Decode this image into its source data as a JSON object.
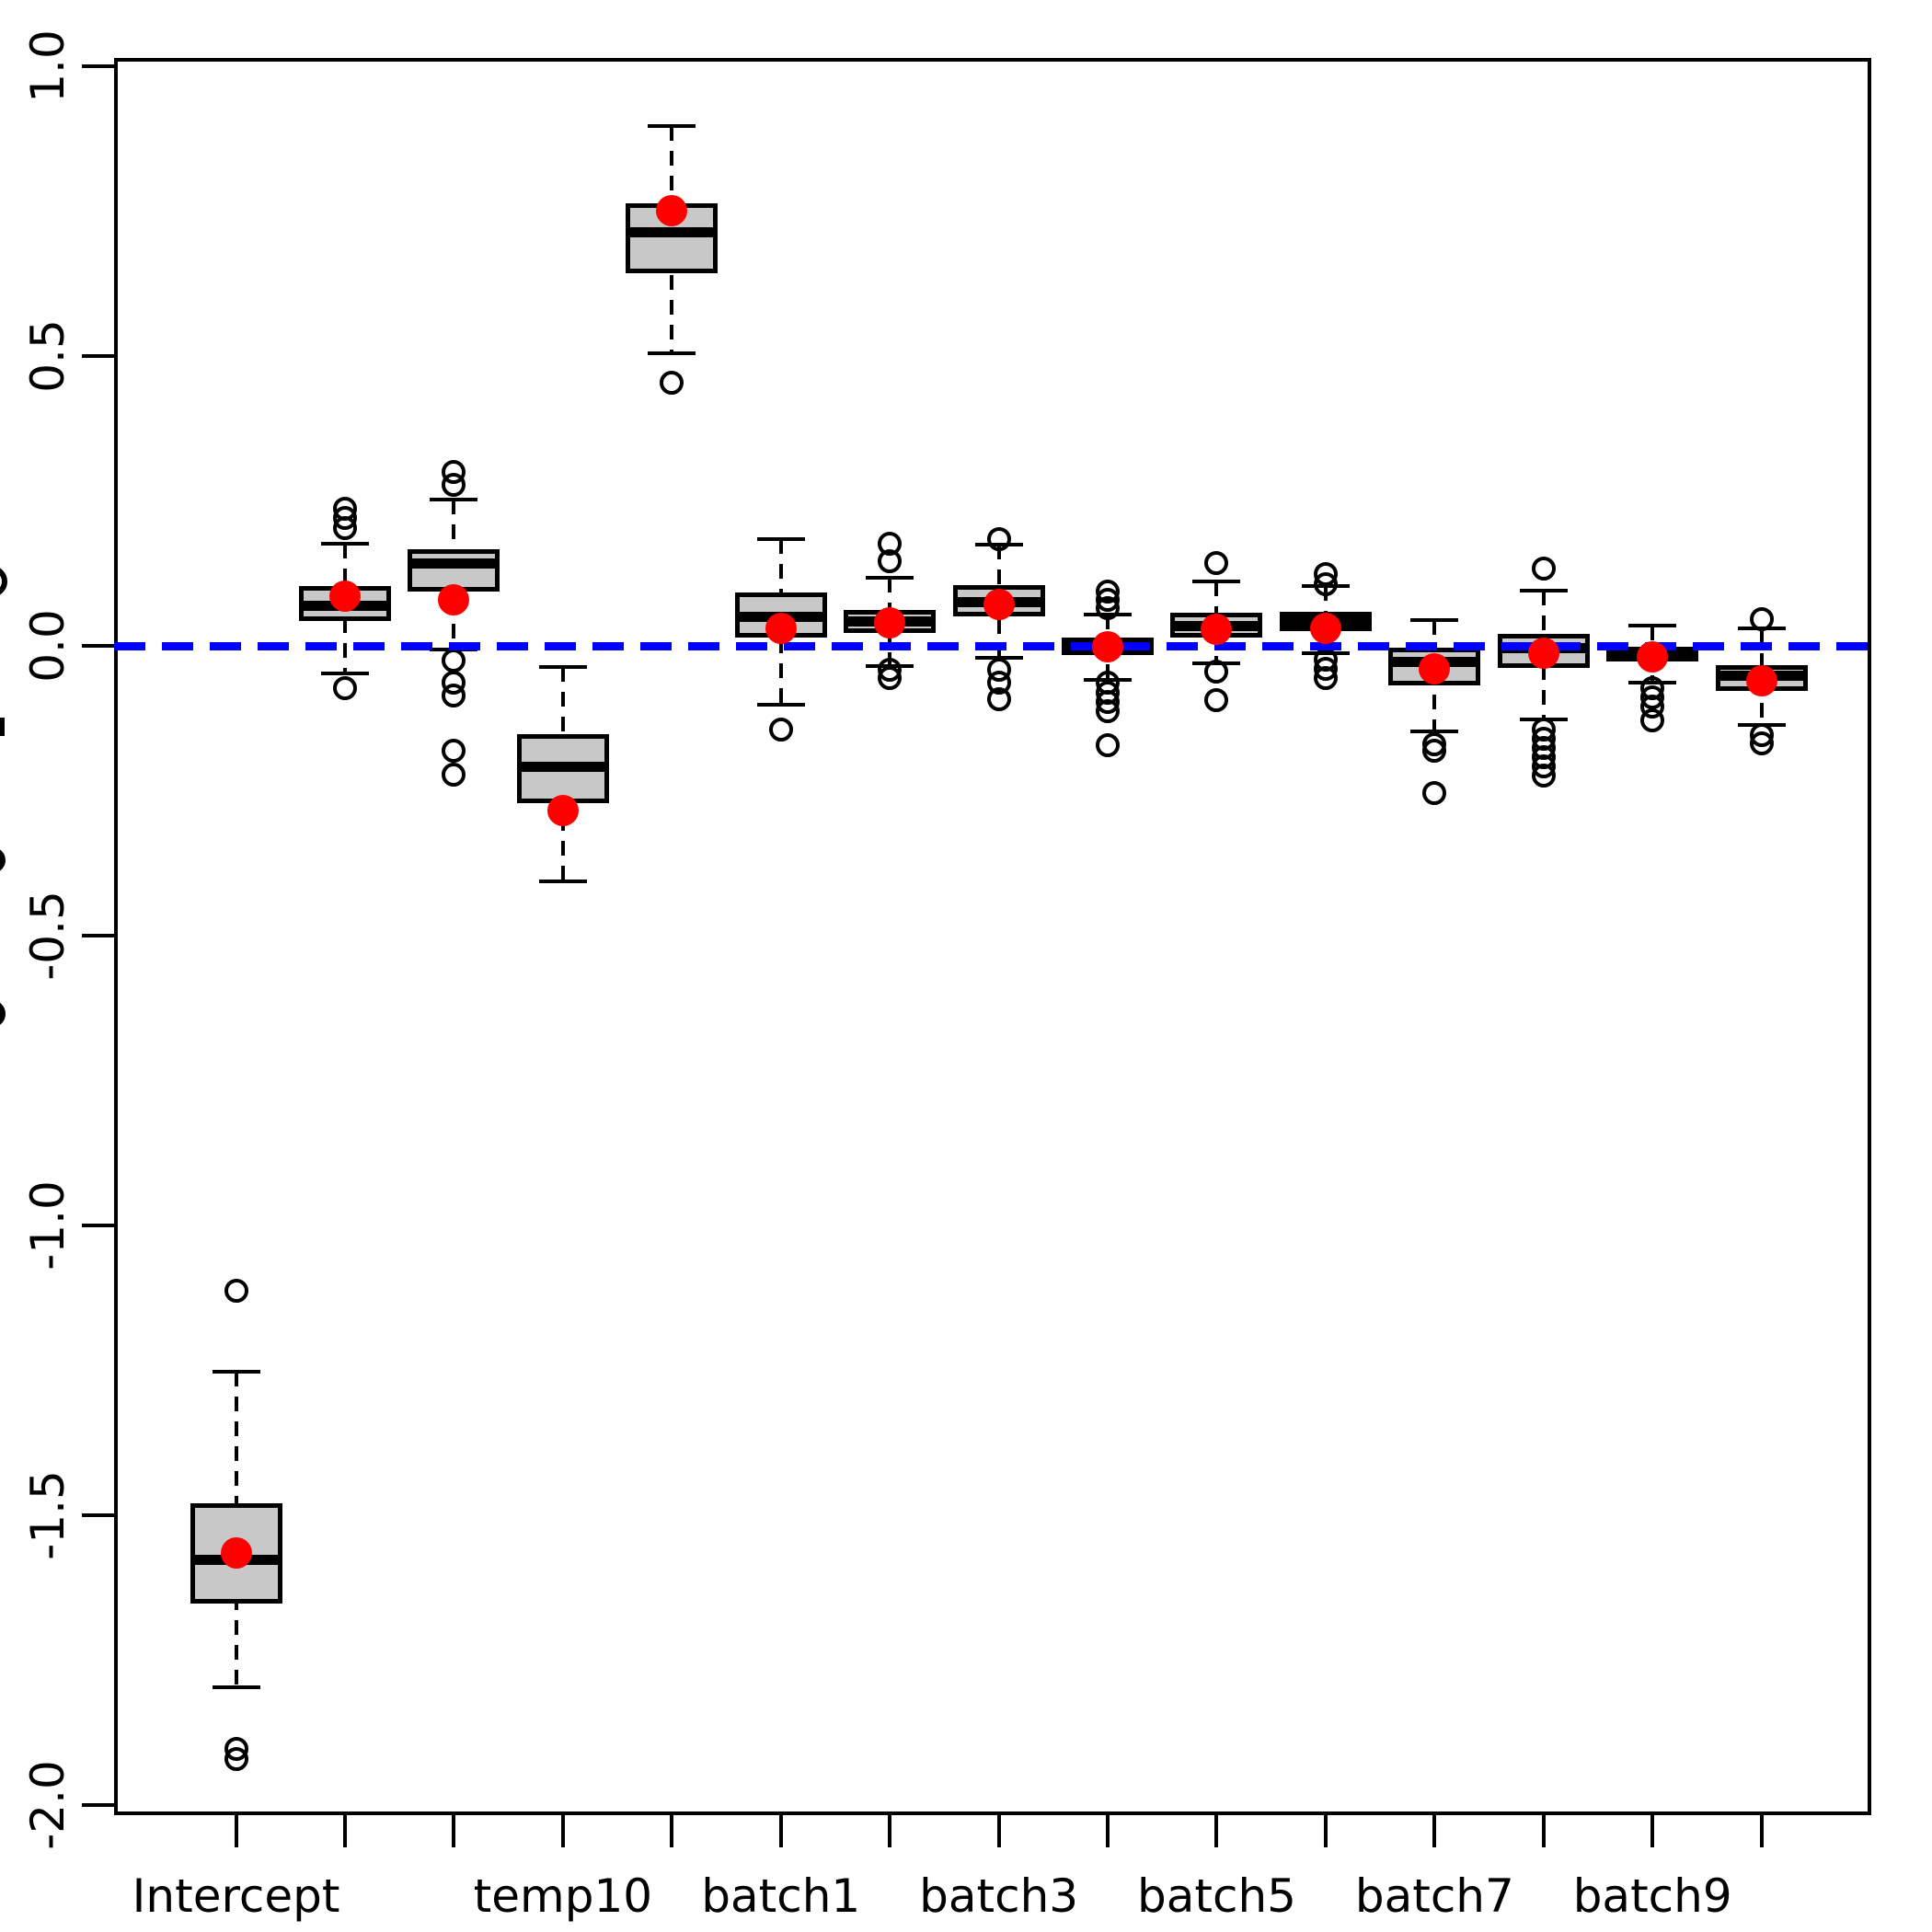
{
  "figure": {
    "background": "#ffffff",
    "y_axis_title_clipped": true,
    "y_axis_title_fragments_y": [
      632,
      790,
      935,
      1102
    ]
  },
  "chart_data": {
    "type": "boxplot",
    "title": "",
    "xlabel": "",
    "ylabel": "",
    "grid": false,
    "legend": false,
    "ylim": [
      -2.018,
      1.015
    ],
    "y_ticks": {
      "values": [
        1.0,
        0.5,
        0.0,
        -0.5,
        -1.0,
        -1.5,
        -2.0
      ],
      "labels": [
        "1.0",
        "0.5",
        "0.0",
        "-0.5",
        "-1.0",
        "-1.5",
        "-2.0"
      ]
    },
    "x_tick_labels": [
      "Intercept",
      "",
      "",
      "temp10",
      "",
      "batch1",
      "",
      "batch3",
      "",
      "batch5",
      "",
      "batch7",
      "",
      "batch9",
      ""
    ],
    "reference_line": {
      "y": 0,
      "color": "#0000ff",
      "style": "dashed"
    },
    "colors": {
      "box_fill": "#c8c8c8",
      "box_border": "#000000",
      "mean_point": "#ff0000",
      "reference": "#0000ff"
    },
    "boxes": [
      {
        "label": "Intercept",
        "whislo": -1.797,
        "q1": -1.653,
        "med": -1.577,
        "q3": -1.48,
        "whishi": -1.253,
        "mean_point": -1.565,
        "out_high": [
          -1.113
        ],
        "out_low": [
          -1.904,
          -1.921
        ]
      },
      {
        "label": "",
        "whislo": -0.047,
        "q1": 0.043,
        "med": 0.07,
        "q3": 0.103,
        "whishi": 0.177,
        "mean_point": 0.086,
        "out_high": [
          0.237,
          0.221,
          0.203
        ],
        "out_low": [
          -0.073
        ]
      },
      {
        "label": "",
        "whislo": -0.006,
        "q1": 0.094,
        "med": 0.142,
        "q3": 0.167,
        "whishi": 0.252,
        "mean_point": 0.08,
        "out_high": [
          0.3,
          0.278
        ],
        "out_low": [
          -0.025,
          -0.063,
          -0.086,
          -0.181,
          -0.222
        ]
      },
      {
        "label": "temp10",
        "whislo": -0.407,
        "q1": -0.272,
        "med": -0.209,
        "q3": -0.152,
        "whishi": -0.036,
        "mean_point": -0.284,
        "out_high": [],
        "out_low": []
      },
      {
        "label": "",
        "whislo": 0.505,
        "q1": 0.643,
        "med": 0.714,
        "q3": 0.764,
        "whishi": 0.898,
        "mean_point": 0.751,
        "out_high": [],
        "out_low": [
          0.454
        ]
      },
      {
        "label": "batch1",
        "whislo": -0.101,
        "q1": 0.014,
        "med": 0.051,
        "q3": 0.092,
        "whishi": 0.185,
        "mean_point": 0.031,
        "out_high": [],
        "out_low": [
          -0.144
        ]
      },
      {
        "label": "",
        "whislo": -0.035,
        "q1": 0.022,
        "med": 0.043,
        "q3": 0.062,
        "whishi": 0.118,
        "mean_point": 0.04,
        "out_high": [
          0.177,
          0.147
        ],
        "out_low": [
          -0.041,
          -0.055
        ]
      },
      {
        "label": "batch3",
        "whislo": -0.02,
        "q1": 0.051,
        "med": 0.076,
        "q3": 0.105,
        "whishi": 0.175,
        "mean_point": 0.072,
        "out_high": [
          0.185
        ],
        "out_low": [
          -0.041,
          -0.063,
          -0.092
        ]
      },
      {
        "label": "",
        "whislo": -0.059,
        "q1": -0.015,
        "med": 0.0,
        "q3": 0.014,
        "whishi": 0.054,
        "mean_point": -0.002,
        "out_high": [
          0.094,
          0.079,
          0.065
        ],
        "out_low": [
          -0.064,
          -0.08,
          -0.097,
          -0.113,
          -0.171
        ]
      },
      {
        "label": "batch5",
        "whislo": -0.03,
        "q1": 0.015,
        "med": 0.034,
        "q3": 0.058,
        "whishi": 0.112,
        "mean_point": 0.029,
        "out_high": [
          0.144
        ],
        "out_low": [
          -0.044,
          -0.093
        ]
      },
      {
        "label": "",
        "whislo": -0.012,
        "q1": 0.026,
        "med": 0.042,
        "q3": 0.059,
        "whishi": 0.103,
        "mean_point": 0.031,
        "out_high": [
          0.124,
          0.107
        ],
        "out_low": [
          -0.023,
          -0.039,
          -0.055
        ]
      },
      {
        "label": "batch7",
        "whislo": -0.148,
        "q1": -0.068,
        "med": -0.027,
        "q3": -0.003,
        "whishi": 0.045,
        "mean_point": -0.039,
        "out_high": [],
        "out_low": [
          -0.17,
          -0.181,
          -0.253
        ]
      },
      {
        "label": "",
        "whislo": -0.126,
        "q1": -0.038,
        "med": -0.003,
        "q3": 0.021,
        "whishi": 0.096,
        "mean_point": -0.012,
        "out_high": [
          0.133
        ],
        "out_low": [
          -0.145,
          -0.16,
          -0.176,
          -0.192,
          -0.208,
          -0.224
        ]
      },
      {
        "label": "batch9",
        "whislo": -0.063,
        "q1": -0.027,
        "med": -0.011,
        "q3": -0.002,
        "whishi": 0.035,
        "mean_point": -0.018,
        "out_high": [],
        "out_low": [
          -0.073,
          -0.089,
          -0.105,
          -0.129
        ]
      },
      {
        "label": "",
        "whislo": -0.137,
        "q1": -0.078,
        "med": -0.052,
        "q3": -0.033,
        "whishi": 0.031,
        "mean_point": -0.06,
        "out_high": [
          0.046
        ],
        "out_low": [
          -0.153,
          -0.168
        ]
      }
    ]
  }
}
